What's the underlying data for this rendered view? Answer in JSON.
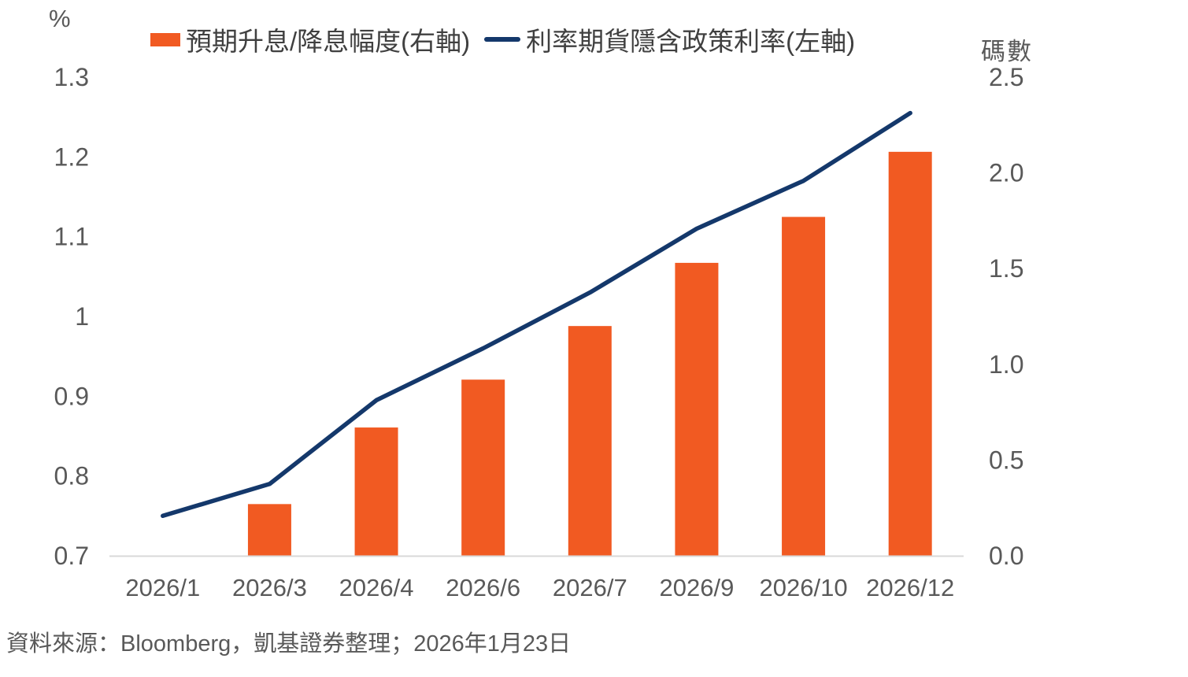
{
  "chart_data": {
    "type": "bar",
    "subtype": "bar-and-line-dual-axis",
    "categories": [
      "2026/1",
      "2026/3",
      "2026/4",
      "2026/6",
      "2026/7",
      "2026/9",
      "2026/10",
      "2026/12"
    ],
    "series": [
      {
        "name": "預期升息/降息幅度(右軸)",
        "type": "bar",
        "axis": "right",
        "color": "#F15A22",
        "values": [
          null,
          0.27,
          0.67,
          0.92,
          1.2,
          1.53,
          1.77,
          2.11
        ]
      },
      {
        "name": "利率期貨隱含政策利率(左軸)",
        "type": "line",
        "axis": "left",
        "color": "#14386B",
        "values": [
          0.75,
          0.79,
          0.895,
          0.96,
          1.03,
          1.11,
          1.17,
          1.255
        ]
      }
    ],
    "left_axis": {
      "unit": "%",
      "min": 0.7,
      "max": 1.3,
      "ticks": [
        "0.7",
        "0.8",
        "0.9",
        "1",
        "1.1",
        "1.2",
        "1.3"
      ]
    },
    "right_axis": {
      "unit": "碼數",
      "min": 0.0,
      "max": 2.5,
      "ticks": [
        "0.0",
        "0.5",
        "1.0",
        "1.5",
        "2.0",
        "2.5"
      ]
    },
    "grid": false,
    "legend_position": "top",
    "source": "資料來源：Bloomberg，凱基證券整理；2026年1月23日",
    "colors": {
      "bar": "#F15A22",
      "line": "#14386B",
      "axis_text": "#595959",
      "legend_text": "#404040",
      "baseline": "#D9D9D9"
    }
  }
}
